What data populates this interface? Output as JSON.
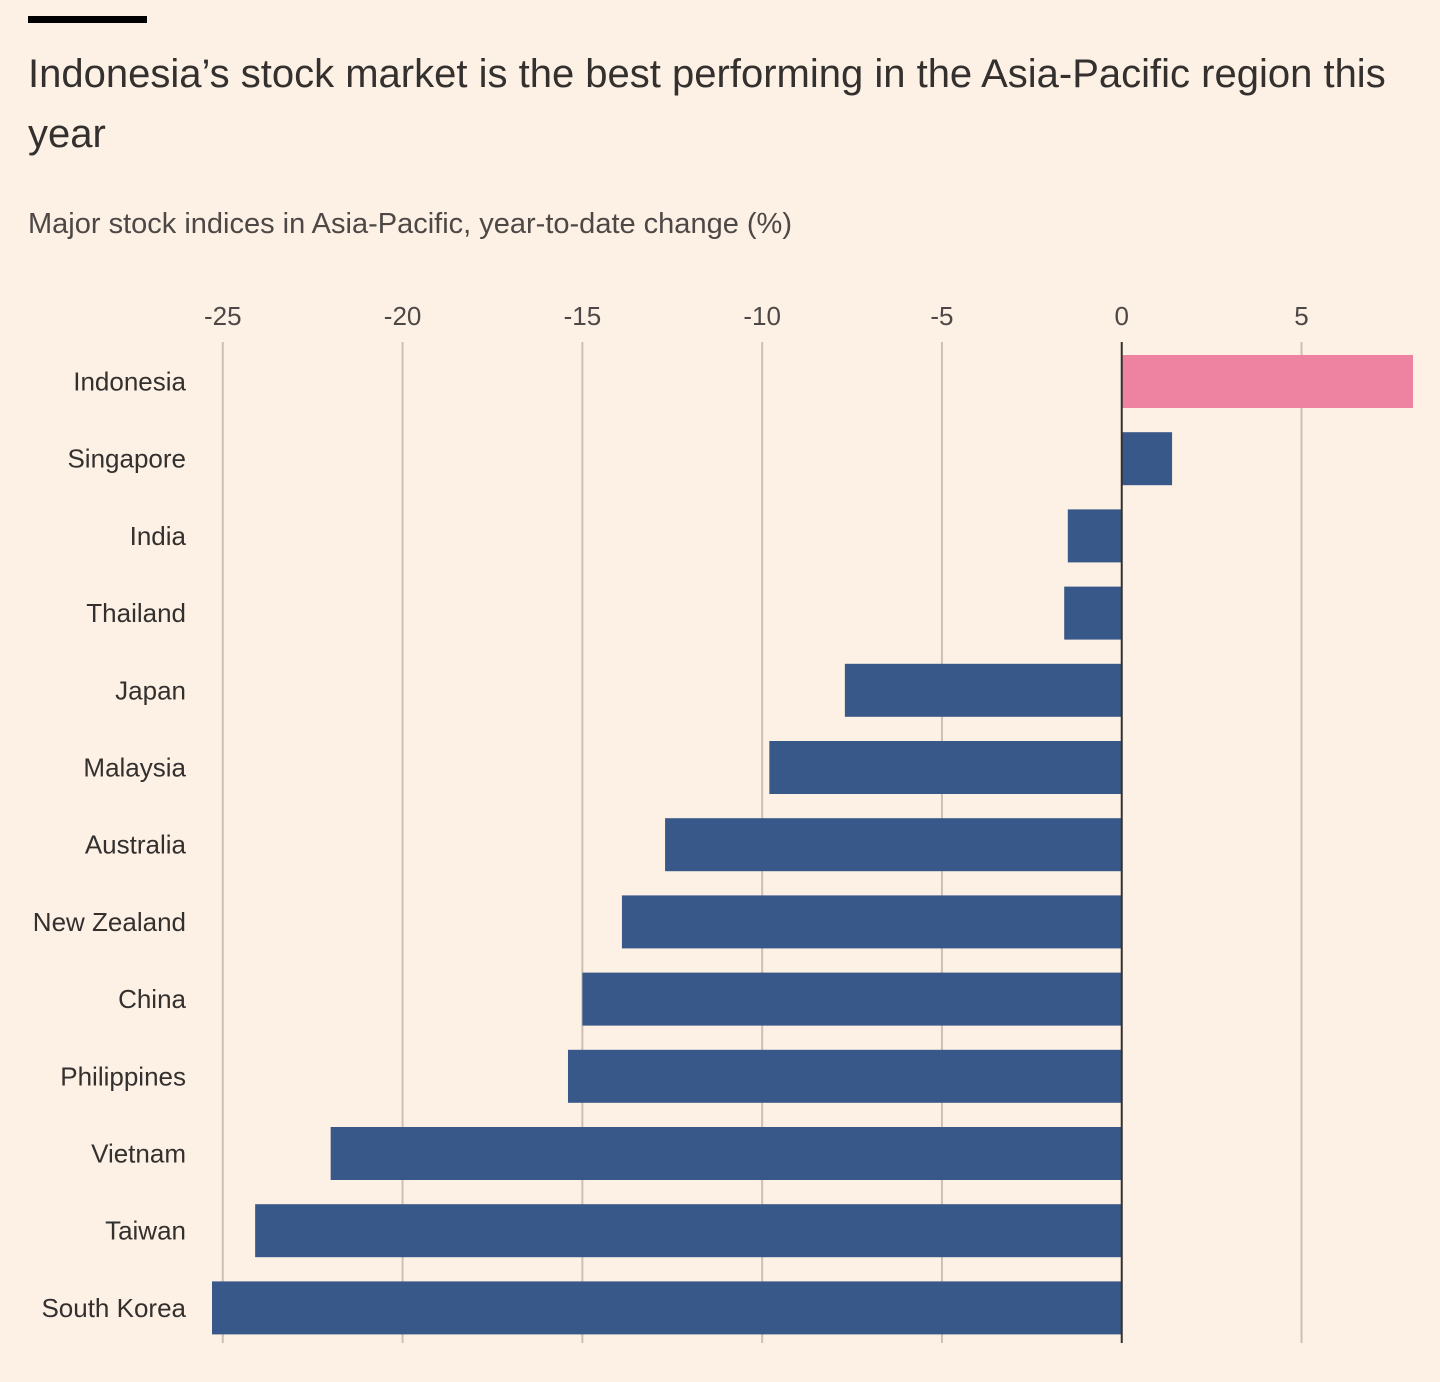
{
  "header": {
    "title": "Indonesia’s stock market is the best performing in the Asia-Pacific region this year",
    "subtitle": "Major stock indices in Asia-Pacific, year-to-date change (%)"
  },
  "colors": {
    "background": "#fdf1e6",
    "highlight_bar": "#ee82a1",
    "bar": "#375888",
    "gridline": "#cdbfb4",
    "zero_line": "#33302e"
  },
  "chart_data": {
    "type": "bar",
    "orientation": "horizontal",
    "title": "Indonesia’s stock market is the best performing in the Asia-Pacific region this year",
    "subtitle": "Major stock indices in Asia-Pacific, year-to-date change (%)",
    "categories": [
      "Indonesia",
      "Singapore",
      "India",
      "Thailand",
      "Japan",
      "Malaysia",
      "Australia",
      "New Zealand",
      "China",
      "Philippines",
      "Vietnam",
      "Taiwan",
      "South Korea"
    ],
    "values": [
      8.1,
      1.4,
      -1.5,
      -1.6,
      -7.7,
      -9.8,
      -12.7,
      -13.9,
      -15.0,
      -15.4,
      -22.0,
      -24.1,
      -25.3
    ],
    "highlight": [
      "Indonesia"
    ],
    "xlim": [
      -25.3,
      8.1
    ],
    "xticks": [
      -25,
      -20,
      -15,
      -10,
      -5,
      0,
      5
    ],
    "xtick_labels": [
      "-25",
      "-20",
      "-15",
      "-10",
      "-5",
      "0",
      "5"
    ],
    "xaxis_position": "top",
    "grid": true,
    "legend": "none"
  }
}
